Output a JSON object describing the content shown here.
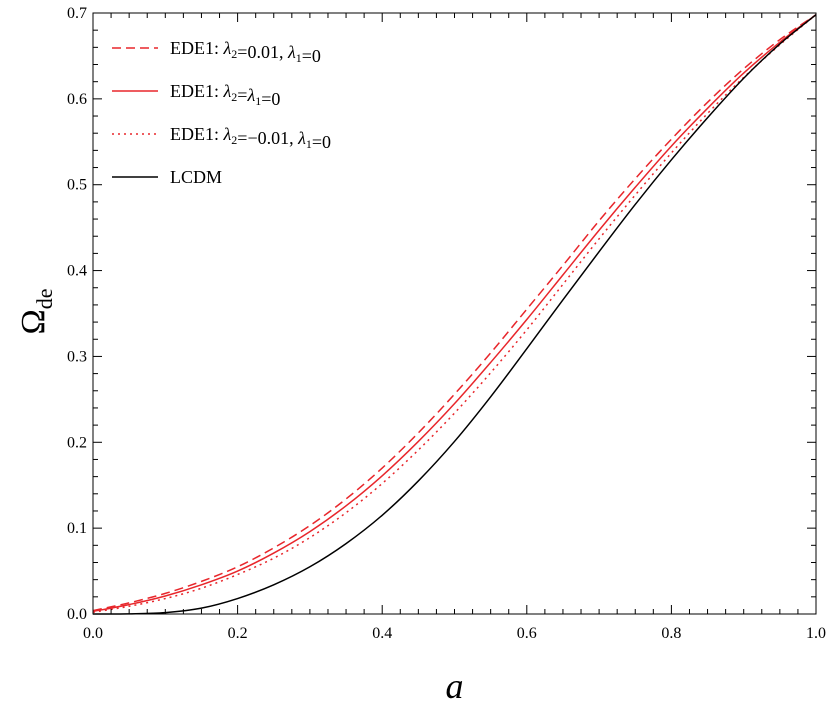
{
  "chart_data": {
    "type": "line",
    "title": "",
    "xlabel": "a",
    "ylabel": "Ω",
    "ylabel_subscript": "de",
    "xlim": [
      0.0,
      1.0
    ],
    "ylim": [
      0.0,
      0.7
    ],
    "x_major_ticks": [
      0.0,
      0.2,
      0.4,
      0.6,
      0.8,
      1.0
    ],
    "x_tick_labels": [
      "0.0",
      "0.2",
      "0.4",
      "0.6",
      "0.8",
      "1.0"
    ],
    "y_major_ticks": [
      0.0,
      0.1,
      0.2,
      0.3,
      0.4,
      0.5,
      0.6,
      0.7
    ],
    "y_tick_labels": [
      "0.0",
      "0.1",
      "0.2",
      "0.3",
      "0.4",
      "0.5",
      "0.6",
      "0.7"
    ],
    "grid": false,
    "legend_position": "top-left",
    "x": [
      0.0,
      0.05,
      0.1,
      0.15,
      0.2,
      0.25,
      0.3,
      0.35,
      0.4,
      0.45,
      0.5,
      0.55,
      0.6,
      0.65,
      0.7,
      0.75,
      0.8,
      0.85,
      0.9,
      0.95,
      1.0
    ],
    "series": [
      {
        "name": "EDE1: λ2=0.01, λ1=0",
        "legend_prefix": "EDE1: ",
        "legend_math": [
          [
            "λ",
            "2"
          ],
          [
            "=0.01, "
          ],
          [
            "λ",
            "1"
          ],
          [
            "=0"
          ]
        ],
        "color": "#e8262b",
        "dash": "dashed",
        "values": [
          0.004,
          0.013,
          0.024,
          0.038,
          0.055,
          0.077,
          0.103,
          0.134,
          0.17,
          0.211,
          0.256,
          0.304,
          0.355,
          0.406,
          0.458,
          0.507,
          0.553,
          0.596,
          0.635,
          0.669,
          0.698
        ]
      },
      {
        "name": "EDE1: λ2=λ1=0",
        "legend_prefix": "EDE1: ",
        "legend_math": [
          [
            "λ",
            "2"
          ],
          [
            "="
          ],
          [
            "λ",
            "1"
          ],
          [
            "=0"
          ]
        ],
        "color": "#e8262b",
        "dash": "solid",
        "values": [
          0.003,
          0.011,
          0.021,
          0.034,
          0.05,
          0.071,
          0.096,
          0.126,
          0.161,
          0.201,
          0.245,
          0.293,
          0.343,
          0.395,
          0.447,
          0.497,
          0.545,
          0.589,
          0.63,
          0.666,
          0.698
        ]
      },
      {
        "name": "EDE1: λ2=−0.01, λ1=0",
        "legend_prefix": "EDE1: ",
        "legend_math": [
          [
            "λ",
            "2"
          ],
          [
            "=−0.01, "
          ],
          [
            "λ",
            "1"
          ],
          [
            "=0"
          ]
        ],
        "color": "#e8262b",
        "dash": "dotted",
        "values": [
          0.002,
          0.009,
          0.018,
          0.03,
          0.046,
          0.065,
          0.089,
          0.118,
          0.152,
          0.191,
          0.234,
          0.281,
          0.331,
          0.384,
          0.437,
          0.488,
          0.537,
          0.583,
          0.625,
          0.663,
          0.698
        ]
      },
      {
        "name": "LCDM",
        "legend_prefix": "LCDM",
        "legend_math": [],
        "color": "#000000",
        "dash": "solid",
        "values": [
          0.0,
          0.0002,
          0.0016,
          0.0068,
          0.018,
          0.034,
          0.055,
          0.082,
          0.115,
          0.155,
          0.201,
          0.253,
          0.309,
          0.366,
          0.422,
          0.477,
          0.529,
          0.578,
          0.624,
          0.664,
          0.698
        ]
      }
    ]
  }
}
